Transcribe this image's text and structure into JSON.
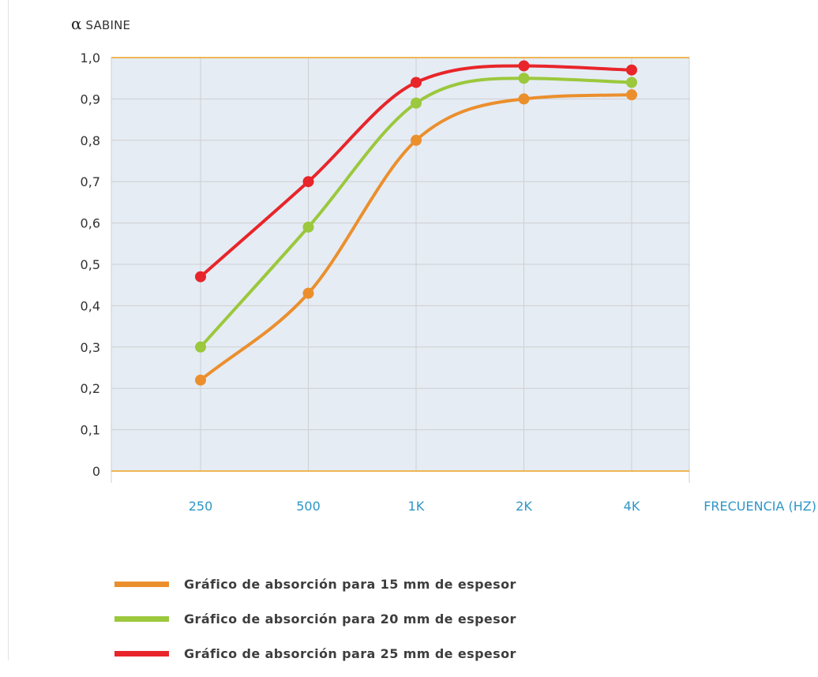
{
  "chart_data": {
    "type": "line",
    "ylabel_symbol": "α",
    "ylabel": "SABINE",
    "xlabel": "FRECUENCIA (HZ)",
    "categories": [
      "250",
      "500",
      "1K",
      "2K",
      "4K"
    ],
    "y_ticks": [
      "0",
      "0,1",
      "0,2",
      "0,3",
      "0,4",
      "0,5",
      "0,6",
      "0,7",
      "0,8",
      "0,9",
      "1,0"
    ],
    "ylim": [
      0,
      1.0
    ],
    "grid": true,
    "legend_position": "bottom",
    "colors": {
      "plot_background": "#e5ecf4",
      "grid": "#cfcfcf",
      "axis_line": "#f0a020",
      "tick_label_x": "#2e96c8",
      "tick_label_y": "#333333"
    },
    "series": [
      {
        "name": "Gráfico de absorción para 15 mm de espesor",
        "color": "#eb8f2d",
        "values": [
          0.22,
          0.43,
          0.8,
          0.9,
          0.91
        ]
      },
      {
        "name": "Gráfico de absorción para 20 mm de espesor",
        "color": "#9bc83c",
        "values": [
          0.3,
          0.59,
          0.89,
          0.95,
          0.94
        ]
      },
      {
        "name": "Gráfico de absorción para 25 mm de espesor",
        "color": "#e8252a",
        "values": [
          0.47,
          0.7,
          0.94,
          0.98,
          0.97
        ]
      }
    ]
  }
}
